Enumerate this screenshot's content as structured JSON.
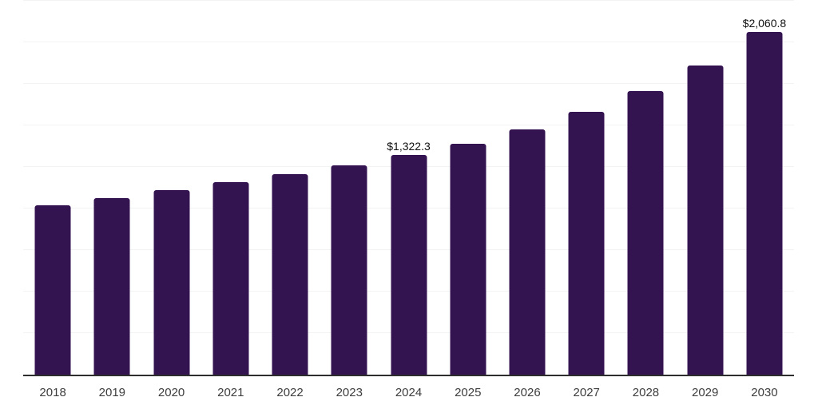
{
  "chart_data": {
    "type": "bar",
    "title": "",
    "xlabel": "",
    "ylabel": "",
    "categories": [
      "2018",
      "2019",
      "2020",
      "2021",
      "2022",
      "2023",
      "2024",
      "2025",
      "2026",
      "2027",
      "2028",
      "2029",
      "2030"
    ],
    "values": [
      1021,
      1062,
      1110,
      1160,
      1208,
      1259,
      1322.3,
      1391,
      1476,
      1580,
      1705,
      1861,
      2060.8
    ],
    "data_labels": [
      "",
      "",
      "",
      "",
      "",
      "",
      "$1,322.3",
      "",
      "",
      "",
      "",
      "",
      "$2,060.8"
    ],
    "ylim": [
      0,
      2250
    ],
    "gridline_step": 250,
    "grid": "horizontal-only",
    "y_axis_labels_visible": false,
    "legend_position": "none",
    "colors": {
      "bar": "#341351",
      "gridline": "#f3f3f3",
      "axis": "#2e2e2e",
      "tick_label": "#3d3d3d",
      "data_label": "#111111",
      "background": "#ffffff"
    }
  }
}
